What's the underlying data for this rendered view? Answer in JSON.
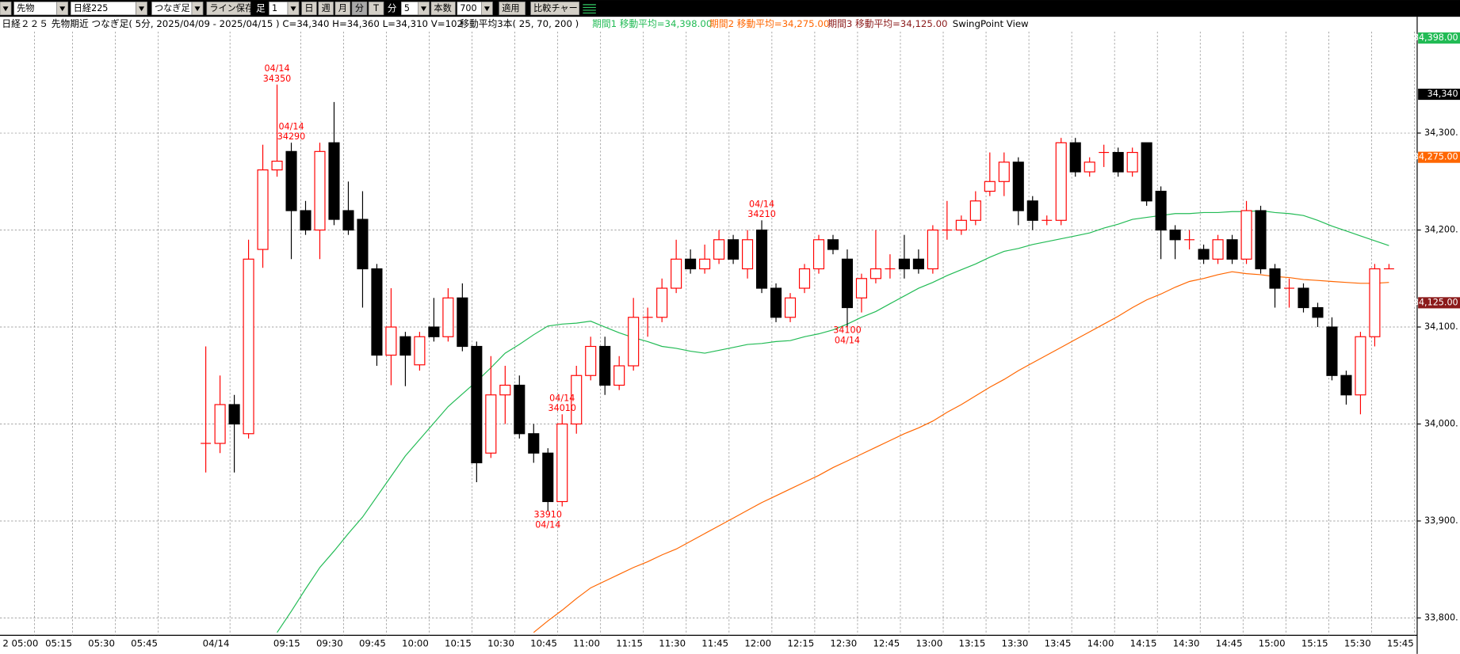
{
  "toolbar": {
    "market": "先物",
    "symbol": "日経225",
    "bar_type": "つなぎ足",
    "save_line": "ライン保存",
    "bar_label": "足",
    "bar_unit_count": 1,
    "periods": [
      "日",
      "週",
      "月",
      "分",
      "T"
    ],
    "unit_label": "分",
    "interval": 5,
    "count_label": "本数",
    "count": 700,
    "apply": "適用",
    "compare": "比較チャート"
  },
  "chart_data": {
    "type": "candlestick",
    "title": "日経２２５ 先物期近 つなぎ足( 5分, 2025/04/09 - 2025/04/15 )  C=34,340 H=34,360 L=34,310 V=102",
    "subtitle": "移動平均3本( 25, 70, 200 )",
    "legend": [
      {
        "text": "期間1 移動平均=34,398.00",
        "color": "#22bb55"
      },
      {
        "text": "期間2 移動平均=34,275.00",
        "color": "#ff6600"
      },
      {
        "text": "期間3 移動平均=34,125.00",
        "color": "#8b1a1a"
      }
    ],
    "view_label": "SwingPoint View",
    "up_color": "#ff0000",
    "down_color": "#000000",
    "open": [
      33980,
      33980,
      34020,
      33990,
      34180,
      34262,
      34281,
      34220,
      34200,
      34290,
      34220,
      34211,
      34160,
      34071,
      34090,
      34061,
      34100,
      34090,
      34130,
      34080,
      33970,
      34030,
      34040,
      33990,
      33970,
      33920,
      34000,
      34050,
      34080,
      34040,
      34060,
      34110,
      34110,
      34140,
      34170,
      34160,
      34170,
      34190,
      34160,
      34200,
      34140,
      34110,
      34140,
      34160,
      34190,
      34170,
      34130,
      34150,
      34160,
      34170,
      34170,
      34160,
      34200,
      34200,
      34210,
      34240,
      34250,
      34270,
      34230,
      34210,
      34210,
      34290,
      34260,
      34280,
      34280,
      34260,
      34290,
      34240,
      34200,
      34190,
      34180,
      34170,
      34190,
      34170,
      34220,
      34160,
      34140,
      34140,
      34120,
      34100,
      34050,
      34030,
      34090,
      34160
    ],
    "high": [
      34080,
      34050,
      34030,
      34190,
      34288,
      34350,
      34290,
      34230,
      34290,
      34332,
      34250,
      34240,
      34165,
      34140,
      34095,
      34095,
      34130,
      34140,
      34145,
      34085,
      34070,
      34060,
      34050,
      34000,
      33975,
      34010,
      34060,
      34090,
      34090,
      34070,
      34130,
      34120,
      34150,
      34190,
      34180,
      34185,
      34200,
      34195,
      34200,
      34210,
      34145,
      34135,
      34165,
      34195,
      34195,
      34180,
      34155,
      34200,
      34175,
      34195,
      34180,
      34205,
      34230,
      34215,
      34240,
      34280,
      34280,
      34275,
      34235,
      34215,
      34295,
      34295,
      34275,
      34288,
      34285,
      34285,
      34290,
      34245,
      34205,
      34200,
      34185,
      34195,
      34195,
      34230,
      34225,
      34165,
      34150,
      34145,
      34125,
      34110,
      34055,
      34095,
      34165,
      34165
    ],
    "low": [
      33950,
      33970,
      33950,
      33985,
      34161,
      34255,
      34170,
      34195,
      34170,
      34205,
      34195,
      34120,
      34060,
      34040,
      34039,
      34055,
      34085,
      34085,
      34075,
      33940,
      33965,
      34000,
      33985,
      33960,
      33910,
      33915,
      33990,
      34045,
      34030,
      34035,
      34055,
      34090,
      34105,
      34135,
      34155,
      34155,
      34165,
      34165,
      34150,
      34135,
      34105,
      34105,
      34135,
      34155,
      34175,
      34100,
      34115,
      34145,
      34150,
      34150,
      34155,
      34155,
      34190,
      34195,
      34205,
      34235,
      34235,
      34205,
      34200,
      34205,
      34205,
      34255,
      34255,
      34265,
      34255,
      34255,
      34225,
      34170,
      34170,
      34180,
      34165,
      34165,
      34165,
      34165,
      34155,
      34120,
      34120,
      34115,
      34100,
      34045,
      34020,
      34010,
      34080,
      34160
    ],
    "close": [
      33980,
      34020,
      34000,
      34170,
      34262,
      34271,
      34220,
      34200,
      34281,
      34211,
      34200,
      34160,
      34071,
      34100,
      34071,
      34090,
      34090,
      34130,
      34080,
      33960,
      34030,
      34040,
      33990,
      33970,
      33920,
      34000,
      34050,
      34080,
      34040,
      34060,
      34110,
      34110,
      34140,
      34170,
      34160,
      34170,
      34190,
      34170,
      34190,
      34140,
      34110,
      34130,
      34160,
      34190,
      34180,
      34120,
      34150,
      34160,
      34160,
      34160,
      34160,
      34200,
      34200,
      34210,
      34230,
      34250,
      34270,
      34220,
      34210,
      34210,
      34290,
      34260,
      34270,
      34280,
      34260,
      34280,
      34230,
      34200,
      34190,
      34190,
      34170,
      34190,
      34170,
      34220,
      34160,
      34140,
      34140,
      34120,
      34110,
      34050,
      34030,
      34090,
      34160,
      34160
    ],
    "series": [
      {
        "color": "#22bb55",
        "values": [
          null,
          null,
          null,
          null,
          null,
          33785,
          33807,
          33830,
          33852,
          33869,
          33887,
          33904,
          33925,
          33946,
          33967,
          33984,
          34001,
          34018,
          34031,
          34044,
          34058,
          34073,
          34082,
          34092,
          34101,
          34103,
          34104,
          34106,
          34100,
          34094,
          34089,
          34085,
          34080,
          34078,
          34075,
          34073,
          34076,
          34079,
          34082,
          34083,
          34085,
          34086,
          34090,
          34093,
          34097,
          34103,
          34110,
          34116,
          34124,
          34132,
          34140,
          34146,
          34153,
          34159,
          34165,
          34172,
          34178,
          34181,
          34185,
          34188,
          34191,
          34194,
          34197,
          34202,
          34206,
          34211,
          34213,
          34215,
          34217,
          34217,
          34218,
          34218,
          34219,
          34219,
          34220,
          34218,
          34217,
          34215,
          34210,
          34204,
          34199,
          34194,
          34189,
          34184
        ]
      },
      {
        "color": "#ff6600",
        "values": [
          null,
          null,
          null,
          null,
          null,
          null,
          null,
          null,
          null,
          null,
          null,
          null,
          null,
          null,
          null,
          null,
          null,
          null,
          null,
          null,
          null,
          null,
          null,
          33785,
          33797,
          33808,
          33820,
          33831,
          33838,
          33845,
          33852,
          33858,
          33865,
          33871,
          33879,
          33887,
          33895,
          33903,
          33911,
          33919,
          33926,
          33933,
          33940,
          33947,
          33955,
          33962,
          33969,
          33976,
          33983,
          33990,
          33996,
          34003,
          34012,
          34020,
          34029,
          34038,
          34046,
          34055,
          34063,
          34071,
          34079,
          34087,
          34095,
          34103,
          34111,
          34120,
          34128,
          34134,
          34141,
          34147,
          34150,
          34154,
          34157,
          34155,
          34154,
          34152,
          34151,
          34149,
          34148,
          34147,
          34146,
          34145,
          34145,
          34146
        ]
      }
    ],
    "annotations": [
      {
        "date": "04/14",
        "price": 34350
      },
      {
        "date": "04/14",
        "price": 33910
      },
      {
        "date": "04/14",
        "price": 34210
      },
      {
        "date": "04/14",
        "price": 34100
      },
      {
        "date": "04/14",
        "price": 34290
      },
      {
        "date": "04/14",
        "price": 34010
      }
    ],
    "ylim": [
      33785,
      34418
    ],
    "yticks": [
      {
        "value": 33800,
        "label": "33,800."
      },
      {
        "value": 33900,
        "label": "33,900."
      },
      {
        "value": 34000,
        "label": "34,000."
      },
      {
        "value": 34100,
        "label": "34,100."
      },
      {
        "value": 34200,
        "label": "34,200."
      },
      {
        "value": 34300,
        "label": "34,300."
      }
    ],
    "price_markers": [
      {
        "value": 34398,
        "label": "34,398.00",
        "color": "#22bb55"
      },
      {
        "value": 34340,
        "label": "34,340",
        "color": "#000000"
      },
      {
        "value": 34275,
        "label": "34,275.00",
        "color": "#ff6600"
      },
      {
        "value": 34125,
        "label": "34,125.00",
        "color": "#8b1a1a"
      }
    ],
    "x_labels": [
      "2 05:00",
      "05:15",
      "05:30",
      "05:45",
      "04/14",
      "09:15",
      "09:30",
      "09:45",
      "10:00",
      "10:15",
      "10:30",
      "10:45",
      "11:00",
      "11:15",
      "11:30",
      "11:45",
      "12:00",
      "12:15",
      "12:30",
      "12:45",
      "13:00",
      "13:15",
      "13:30",
      "13:45",
      "14:00",
      "14:15",
      "14:30",
      "14:45",
      "15:00",
      "15:15",
      "15:30",
      "15:45"
    ],
    "grid": true
  }
}
